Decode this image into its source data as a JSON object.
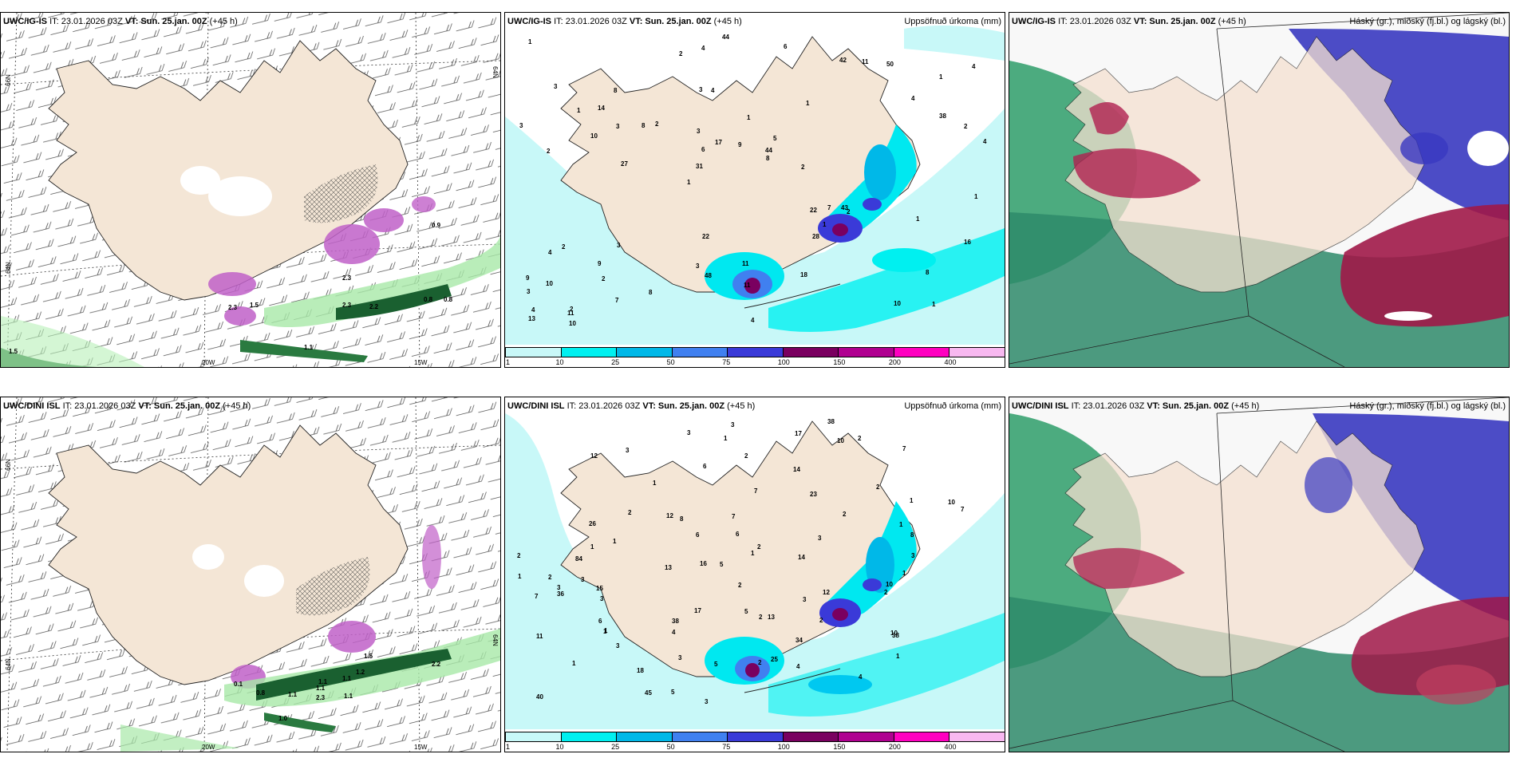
{
  "rows": [
    {
      "model": "UWC/IG-IS",
      "meta_it": "IT: 23.01.2026 03Z",
      "meta_vt_label": "VT:",
      "meta_vt": "Sun. 25.jan. 00Z",
      "meta_lead": "(+45 h)",
      "wind_labels": [
        "1.5",
        "2.3",
        "2.2",
        "0.8",
        "1.1",
        "2.3",
        "2.3",
        "0.8",
        "0.9",
        "1.5"
      ],
      "axis_labels": [
        "66N",
        "64N",
        "64N",
        "20W",
        "15W"
      ],
      "precip_labels": [
        "1",
        "2",
        "1",
        "1",
        "1",
        "2",
        "3",
        "1",
        "2",
        "2",
        "3",
        "2",
        "4",
        "5",
        "2",
        "3",
        "4",
        "4",
        "22",
        "38",
        "31",
        "3",
        "6",
        "8",
        "42",
        "3",
        "10",
        "8",
        "43",
        "4",
        "8",
        "10",
        "28",
        "7",
        "2",
        "44",
        "4",
        "48",
        "8",
        "4",
        "4",
        "4",
        "1",
        "18",
        "9",
        "10",
        "13",
        "11",
        "50",
        "44",
        "27",
        "3",
        "14",
        "11",
        "11",
        "6",
        "2",
        "17",
        "16",
        "22",
        "8",
        "7",
        "3",
        "9",
        "1",
        "1",
        "1",
        "3",
        "11",
        "9",
        "10",
        "2",
        "1"
      ],
      "layer_title": "Háský (gr.), miðský (fj.bl.) og lágský (bl.)"
    },
    {
      "model": "UWC/DINI ISL",
      "meta_it": "IT: 23.01.2026 03Z",
      "meta_vt_label": "VT:",
      "meta_vt": "Sun. 25.jan. 00Z",
      "meta_lead": "(+45 h)",
      "wind_labels": [
        "1.1",
        "1.1",
        "1.2",
        "0.8",
        "1.1",
        "1.1",
        "2.3",
        "1.1",
        "1.0",
        "0.1",
        "1.5",
        "2.2"
      ],
      "axis_labels": [
        "66N",
        "64N",
        "64N",
        "20W",
        "15W"
      ],
      "precip_labels": [
        "1",
        "2",
        "3",
        "2",
        "2",
        "1",
        "3",
        "1",
        "1",
        "2",
        "2",
        "3",
        "2",
        "1",
        "3",
        "3",
        "1",
        "2",
        "1",
        "5",
        "4",
        "1",
        "6",
        "2",
        "6",
        "3",
        "3",
        "17",
        "7",
        "12",
        "26",
        "3",
        "25",
        "5",
        "38",
        "36",
        "10",
        "14",
        "23",
        "10",
        "7",
        "2",
        "5",
        "15",
        "1",
        "1",
        "3",
        "2",
        "38",
        "34",
        "8",
        "45",
        "7",
        "8",
        "13",
        "13",
        "12",
        "10",
        "12",
        "84",
        "40",
        "38",
        "14",
        "16",
        "17",
        "11",
        "6",
        "3",
        "1",
        "4",
        "2",
        "18",
        "6",
        "3",
        "10",
        "2",
        "7",
        "5",
        "4",
        "7",
        "3",
        "1",
        "1",
        "2"
      ],
      "layer_title": "Háský (gr.), miðský (fj.bl.) og lágský (bl.)"
    }
  ],
  "precip_title": "Uppsöfnuð úrkoma (mm)",
  "colorbar": {
    "ticks": [
      "1",
      "10",
      "25",
      "50",
      "75",
      "100",
      "150",
      "200",
      "400"
    ],
    "colors": [
      "#c8f8f8",
      "#00f0f0",
      "#00b8e8",
      "#4080f0",
      "#3a3ad8",
      "#7a0060",
      "#b00090",
      "#ff00c0",
      "#f8b8f0"
    ]
  },
  "colors": {
    "land": "#f4e6d6",
    "sea_precip": "#c8f8f8",
    "high_cloud": "#2e9e6a",
    "mid_cloud": "#3838c0",
    "low_cloud": "#b02050"
  }
}
